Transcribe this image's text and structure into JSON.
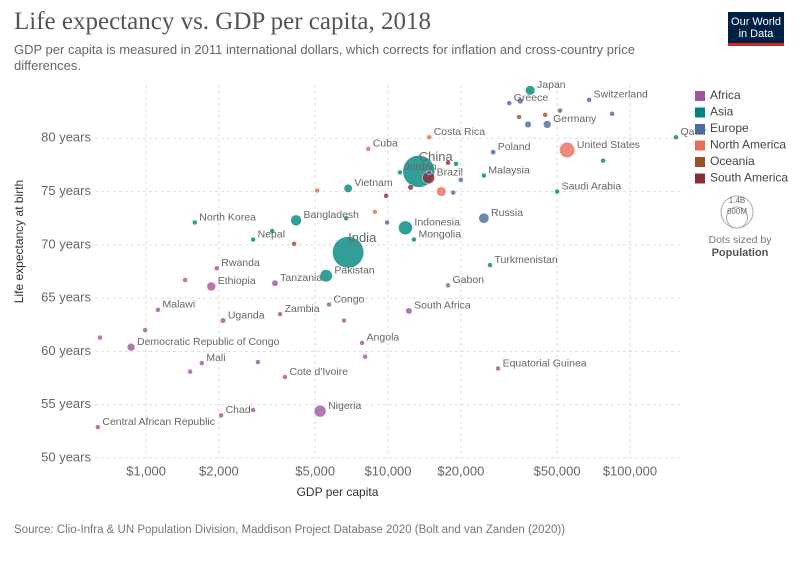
{
  "chart_data": {
    "type": "scatter",
    "title": "Life expectancy vs. GDP per capita, 2018",
    "subtitle": "GDP per capita is measured in 2011 international dollars, which corrects for inflation and cross-country price differences.",
    "logo": [
      "Our World",
      "in Data"
    ],
    "x_label": "GDP per capita",
    "y_label": "Life expectancy at birth",
    "source": "Source: Clio-Infra & UN Population Division, Maddison Project Database 2020 (Bolt and van Zanden (2020))",
    "x_log": true,
    "grid": true,
    "legend_position": "right",
    "xlim": [
      615,
      161000
    ],
    "ylim": [
      50,
      85
    ],
    "xticks": [
      {
        "value": 1000,
        "label": "$1,000"
      },
      {
        "value": 2000,
        "label": "$2,000"
      },
      {
        "value": 5000,
        "label": "$5,000"
      },
      {
        "value": 10000,
        "label": "$10,000"
      },
      {
        "value": 20000,
        "label": "$20,000"
      },
      {
        "value": 50000,
        "label": "$50,000"
      },
      {
        "value": 100000,
        "label": "$100,000"
      }
    ],
    "yticks": [
      {
        "value": 50,
        "label": "50 years"
      },
      {
        "value": 55,
        "label": "55 years"
      },
      {
        "value": 60,
        "label": "60 years"
      },
      {
        "value": 65,
        "label": "65 years"
      },
      {
        "value": 70,
        "label": "70 years"
      },
      {
        "value": 75,
        "label": "75 years"
      },
      {
        "value": 80,
        "label": "80 years"
      }
    ],
    "size_legend": {
      "title": "Dots sized by",
      "variable": "Population",
      "reference_size": 1400000000,
      "values": [
        {
          "value": 1400000000,
          "label": "1.4B"
        },
        {
          "value": 600000000,
          "label": "600M"
        }
      ]
    },
    "series": [
      {
        "name": "Africa",
        "color": "#a2559c",
        "labels": [
          "Central African Republic",
          "Chad",
          "Nigeria",
          "Cote d'Ivoire",
          "Mali",
          "Democratic Republic of Congo",
          "Angola",
          "Equatorial Guinea",
          "Malawi",
          "Uganda",
          "Zambia",
          "Congo",
          "South Africa",
          "Tanzania",
          "Ethiopia",
          "Gabon",
          "Rwanda",
          null,
          null,
          null,
          null,
          null,
          null,
          null,
          null
        ],
        "x": [
          632,
          2042,
          5240,
          3750,
          1700,
          867,
          7810,
          28500,
          1120,
          2080,
          3580,
          5700,
          12200,
          3410,
          1860,
          17700,
          1960,
          645,
          991,
          1450,
          1520,
          2900,
          8040,
          2770,
          6580
        ],
        "values": [
          52.9,
          54.0,
          54.4,
          57.6,
          58.9,
          60.4,
          60.8,
          58.4,
          63.9,
          62.9,
          63.5,
          64.4,
          63.8,
          66.4,
          66.1,
          66.2,
          67.8,
          61.3,
          62.0,
          66.7,
          58.1,
          59.0,
          59.5,
          54.5,
          62.9
        ],
        "sizes": [
          4700000,
          15000000,
          196000000,
          25000000,
          19000000,
          84000000,
          31000000,
          1300000,
          18000000,
          43000000,
          17000000,
          5000000,
          57000000,
          56000000,
          109000000,
          2000000,
          12000000,
          3000000,
          8000000,
          5000000,
          4000000,
          6000000,
          2000000,
          3000000,
          4000000
        ]
      },
      {
        "name": "Asia",
        "color": "#00847e",
        "labels": [
          "China",
          "India",
          "Pakistan",
          "Bangladesh",
          "Indonesia",
          "Vietnam",
          "Nepal",
          "North Korea",
          "Mongolia",
          "Jordan",
          "Malaysia",
          "Turkmenistan",
          "Saudi Arabia",
          "Qatar",
          "Japan",
          null,
          null,
          null,
          null
        ],
        "x": [
          13400,
          6840,
          5550,
          4170,
          11800,
          6840,
          2770,
          1590,
          12800,
          11200,
          24900,
          26400,
          50000,
          155000,
          38700,
          19100,
          77400,
          3320,
          6710
        ],
        "values": [
          76.9,
          69.3,
          67.1,
          72.3,
          71.6,
          75.3,
          70.5,
          72.1,
          70.5,
          76.8,
          76.5,
          68.1,
          75.0,
          80.1,
          84.5,
          77.6,
          77.9,
          71.3,
          72.5
        ],
        "sizes": [
          1400000000,
          1350000000,
          212000000,
          161000000,
          268000000,
          96000000,
          28000000,
          26000000,
          3000000,
          10000000,
          32000000,
          6000000,
          34000000,
          3000000,
          127000000,
          20000000,
          10000000,
          7000000,
          17000000
        ]
      },
      {
        "name": "Europe",
        "color": "#4c6a9c",
        "labels": [
          "Switzerland",
          "Greece",
          "Germany",
          "Poland",
          "Russia",
          null,
          null,
          null,
          null,
          null,
          null,
          null,
          null
        ],
        "x": [
          67800,
          31700,
          45500,
          27200,
          24900,
          35200,
          51400,
          37900,
          84400,
          20000,
          18600,
          9910,
          14800
        ],
        "values": [
          83.6,
          83.3,
          81.3,
          78.7,
          72.5,
          83.5,
          82.6,
          81.3,
          82.3,
          76.1,
          74.9,
          72.1,
          76.8
        ],
        "sizes": [
          8500000,
          10000000,
          83000000,
          38000000,
          144000000,
          47000000,
          17000000,
          60000000,
          5000000,
          10000000,
          7000000,
          3000000,
          4000000
        ]
      },
      {
        "name": "North America",
        "color": "#e56e5a",
        "labels": [
          "United States",
          "Costa Rica",
          "Cuba",
          null,
          null,
          null
        ],
        "x": [
          55000,
          14800,
          8280,
          16600,
          5090,
          8830
        ],
        "values": [
          78.9,
          80.1,
          79.0,
          75.0,
          75.1,
          73.1
        ],
        "sizes": [
          327000000,
          5000000,
          11000000,
          126000000,
          9000000,
          3000000
        ]
      },
      {
        "name": "Oceania",
        "color": "#9a5129",
        "labels": [
          null,
          null,
          null
        ],
        "x": [
          44600,
          34800,
          4090
        ],
        "values": [
          82.2,
          82.0,
          70.1
        ],
        "sizes": [
          25000000,
          5000000,
          8000000
        ]
      },
      {
        "name": "South America",
        "color": "#883039",
        "labels": [
          "Brazil",
          null,
          null,
          null
        ],
        "x": [
          14700,
          17700,
          9820,
          12400
        ],
        "values": [
          76.3,
          77.7,
          74.6,
          75.4
        ],
        "sizes": [
          209000000,
          18000000,
          11000000,
          44000000
        ]
      }
    ]
  }
}
